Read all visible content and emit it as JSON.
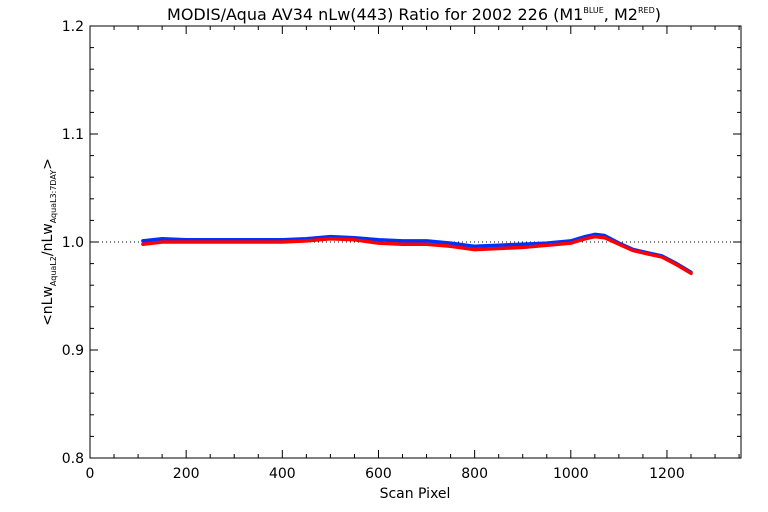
{
  "chart_data": {
    "type": "line",
    "title": {
      "main": "MODIS/Aqua AV34 nLw(443) Ratio for 2002 226 (M1",
      "sup1": "BLUE",
      "mid": ", M2",
      "sup2": "RED",
      "end": ")"
    },
    "xlabel": "Scan Pixel",
    "ylabel": {
      "p1": "<nLw",
      "s1": "AquaL2",
      "p2": "/nLw",
      "s2": "AquaL3:7DAY",
      "p3": ">"
    },
    "xlim": [
      0,
      1354
    ],
    "ylim": [
      0.8,
      1.2
    ],
    "x_ticks": [
      0,
      200,
      400,
      600,
      800,
      1000,
      1200
    ],
    "x_tick_labels": [
      "0",
      "200",
      "400",
      "600",
      "800",
      "1000",
      "1200"
    ],
    "y_ticks": [
      0.8,
      0.9,
      1.0,
      1.1,
      1.2
    ],
    "y_tick_labels": [
      "0.8",
      "0.9",
      "1.0",
      "1.1",
      "1.2"
    ],
    "reference_line": 1.0,
    "grid": false,
    "series": [
      {
        "color": "#0030ff",
        "x": [
          110,
          150,
          200,
          250,
          300,
          350,
          400,
          450,
          500,
          550,
          600,
          650,
          700,
          750,
          800,
          850,
          900,
          950,
          1000,
          1030,
          1050,
          1070,
          1100,
          1130,
          1160,
          1190,
          1220,
          1250
        ],
        "y": [
          1.001,
          1.003,
          1.002,
          1.002,
          1.002,
          1.002,
          1.002,
          1.003,
          1.005,
          1.004,
          1.002,
          1.001,
          1.001,
          0.999,
          0.996,
          0.997,
          0.998,
          0.999,
          1.001,
          1.005,
          1.007,
          1.006,
          0.999,
          0.993,
          0.99,
          0.987,
          0.98,
          0.972
        ]
      },
      {
        "color": "#ff0000",
        "x": [
          110,
          150,
          200,
          250,
          300,
          350,
          400,
          450,
          500,
          550,
          600,
          650,
          700,
          750,
          800,
          850,
          900,
          950,
          1000,
          1030,
          1050,
          1070,
          1100,
          1130,
          1160,
          1190,
          1220,
          1250
        ],
        "y": [
          0.998,
          1.0,
          1.0,
          1.0,
          1.0,
          1.0,
          1.0,
          1.001,
          1.003,
          1.002,
          0.999,
          0.998,
          0.998,
          0.996,
          0.993,
          0.994,
          0.995,
          0.997,
          0.999,
          1.003,
          1.005,
          1.004,
          0.998,
          0.992,
          0.989,
          0.986,
          0.979,
          0.971
        ]
      }
    ]
  }
}
